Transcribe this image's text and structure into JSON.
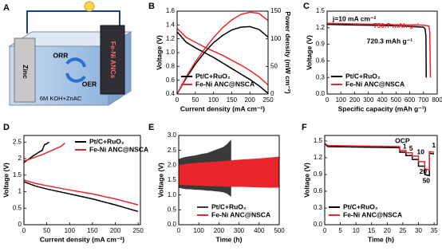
{
  "schematic": {
    "label": "A",
    "zinc": "Zinc",
    "cathode": "Fe-Ni ANCs",
    "orr": "ORR",
    "oer": "OER",
    "electrolyte": "6M KOH+ZnAC"
  },
  "chart_data": [
    {
      "type": "line",
      "label": "B",
      "xlabel": "Current density (mA cm⁻²)",
      "ylabel": "Voltage (V)",
      "y2label": "Power density (mW cm⁻²)",
      "xlim": [
        0,
        250
      ],
      "xticks": [
        0,
        50,
        100,
        150,
        200,
        250
      ],
      "ylim": [
        0.4,
        1.6
      ],
      "yticks": [
        0.4,
        0.6,
        0.8,
        {
          "value": 1.0,
          "label": "1.0"
        },
        1.2,
        1.4,
        1.6
      ],
      "y2lim": [
        0,
        150
      ],
      "y2ticks": [
        0,
        50,
        100,
        150
      ],
      "legend": "lower left",
      "series": [
        {
          "name": "Pt/C+RuO₂",
          "color": "#000000",
          "x": [
            0,
            25,
            50,
            75,
            100,
            125,
            150,
            175,
            200,
            225,
            250
          ],
          "values": [
            1.3,
            1.15,
            1.07,
            1.0,
            0.93,
            0.85,
            0.77,
            0.69,
            0.61,
            0.52,
            0.41
          ]
        },
        {
          "name": "Fe-Ni ANC@NSCA",
          "color": "#e8262b",
          "x": [
            0,
            25,
            50,
            75,
            100,
            125,
            150,
            175,
            200,
            225,
            250
          ],
          "values": [
            1.35,
            1.22,
            1.15,
            1.08,
            1.02,
            0.96,
            0.89,
            0.82,
            0.74,
            0.65,
            0.53
          ]
        },
        {
          "color": "#000000",
          "axis": "y2",
          "x": [
            0,
            25,
            50,
            75,
            100,
            125,
            150,
            175,
            200,
            225,
            250
          ],
          "values": [
            0,
            29,
            54,
            75,
            93,
            106,
            116,
            121,
            122,
            117,
            103
          ]
        },
        {
          "color": "#e8262b",
          "axis": "y2",
          "x": [
            0,
            25,
            50,
            75,
            100,
            125,
            150,
            175,
            200,
            225,
            250
          ],
          "values": [
            0,
            31,
            58,
            81,
            102,
            120,
            134,
            144,
            148,
            146,
            133
          ]
        }
      ]
    },
    {
      "type": "line",
      "label": "C",
      "xlabel": "Specific capacity (mAh g⁻¹)",
      "ylabel": "Voltage (V)",
      "xlim": [
        0,
        800
      ],
      "xticks": [
        0,
        100,
        200,
        300,
        400,
        500,
        600,
        700,
        800
      ],
      "ylim": [
        0,
        1.5
      ],
      "yticks": [
        {
          "value": 0,
          "label": "0.0"
        },
        0.3,
        0.6,
        0.9,
        1.2,
        1.5
      ],
      "legend": "lower left",
      "annotations": [
        {
          "text": "j=10 mA cm⁻²",
          "color": "#000000"
        },
        {
          "text": "750.7 mAh g⁻¹",
          "color": "#e8262b"
        },
        {
          "text": "720.3 mAh g⁻¹",
          "color": "#000000"
        }
      ],
      "series": [
        {
          "name": "Pt/C+RuO₂",
          "color": "#000000",
          "x": [
            0,
            100,
            200,
            300,
            400,
            500,
            600,
            700,
            712,
            718,
            720.3
          ],
          "values": [
            1.26,
            1.255,
            1.25,
            1.245,
            1.24,
            1.235,
            1.225,
            1.21,
            1.18,
            1.05,
            0.3
          ]
        },
        {
          "name": "Fe-Ni ANC@NSCA",
          "color": "#e8262b",
          "x": [
            0,
            100,
            200,
            300,
            400,
            500,
            600,
            700,
            740,
            746,
            750.7
          ],
          "values": [
            1.28,
            1.275,
            1.27,
            1.265,
            1.26,
            1.255,
            1.25,
            1.245,
            1.23,
            1.12,
            0.3
          ]
        }
      ]
    },
    {
      "type": "line",
      "label": "D",
      "xlabel": "Current density (mA cm⁻²)",
      "ylabel": "Voltage (V)",
      "xlim": [
        0,
        255
      ],
      "xticks": [
        0,
        50,
        100,
        150,
        200,
        250
      ],
      "ylim": [
        0,
        2.7
      ],
      "yticks": [
        0,
        0.5,
        1,
        1.5,
        2,
        2.5
      ],
      "legend": "upper right",
      "series": [
        {
          "name": "Pt/C+RuO₂",
          "color": "#000000",
          "x": [
            0,
            25,
            50,
            100,
            150,
            200,
            250
          ],
          "values": [
            1.3,
            1.17,
            1.08,
            0.93,
            0.78,
            0.6,
            0.4
          ]
        },
        {
          "name": "Fe-Ni ANC@NSCA",
          "color": "#e8262b",
          "x": [
            0,
            25,
            50,
            100,
            150,
            200,
            250
          ],
          "values": [
            1.35,
            1.25,
            1.18,
            1.05,
            0.93,
            0.78,
            0.6
          ]
        },
        {
          "color": "#000000",
          "x": [
            0,
            10,
            20,
            30,
            40,
            45,
            50,
            55
          ],
          "values": [
            1.88,
            1.98,
            2.08,
            2.17,
            2.25,
            2.42,
            2.45,
            2.5
          ]
        },
        {
          "color": "#e8262b",
          "x": [
            0,
            20,
            40,
            60,
            80,
            90
          ],
          "values": [
            1.92,
            2.02,
            2.12,
            2.24,
            2.36,
            2.47
          ]
        }
      ]
    },
    {
      "type": "band",
      "label": "E",
      "xlabel": "Time (h)",
      "ylabel": "Voltage (V)",
      "xlim": [
        0,
        500
      ],
      "xticks": [
        0,
        100,
        200,
        300,
        400,
        500
      ],
      "ylim": [
        0,
        3.0
      ],
      "yticks": [
        {
          "value": 0,
          "label": "0.0"
        },
        0.5,
        {
          "value": 1.0,
          "label": "1.0"
        },
        1.5,
        {
          "value": 2.0,
          "label": "2.0"
        },
        2.5,
        {
          "value": 3.0,
          "label": "3.0"
        }
      ],
      "legend": "lower center",
      "series": [
        {
          "name": "Pt/C+RuO₂",
          "color": "#3a3a3a",
          "x": [
            0,
            20,
            40,
            60,
            80,
            100,
            120,
            140,
            160,
            180,
            200,
            220,
            240,
            260
          ],
          "low": [
            1.25,
            1.22,
            1.2,
            1.2,
            1.18,
            1.18,
            1.17,
            1.15,
            1.15,
            1.13,
            1.12,
            1.1,
            1.05,
            0.95
          ],
          "high": [
            2.2,
            2.25,
            2.28,
            2.3,
            2.32,
            2.35,
            2.38,
            2.4,
            2.45,
            2.5,
            2.55,
            2.6,
            2.7,
            2.85
          ]
        },
        {
          "name": "Fe-Ni ANC@NSCA",
          "color": "#e8262b",
          "x": [
            0,
            50,
            100,
            150,
            200,
            250,
            300,
            350,
            400,
            450,
            500
          ],
          "low": [
            1.35,
            1.33,
            1.32,
            1.3,
            1.3,
            1.28,
            1.28,
            1.27,
            1.26,
            1.25,
            1.25
          ],
          "high": [
            2.0,
            2.05,
            2.08,
            2.1,
            2.12,
            2.15,
            2.18,
            2.2,
            2.22,
            2.25,
            2.28
          ]
        }
      ]
    },
    {
      "type": "line",
      "label": "F",
      "xlabel": "Time (h)",
      "ylabel": "Voltage (V)",
      "xlim": [
        0,
        36
      ],
      "xticks": [
        0,
        5,
        10,
        15,
        20,
        25,
        30,
        35
      ],
      "ylim": [
        0,
        1.6
      ],
      "yticks": [
        {
          "value": 0,
          "label": "0.0"
        },
        0.3,
        0.6,
        0.9,
        1.2,
        1.5
      ],
      "legend": "lower left",
      "annotations": [
        {
          "text": "OCP",
          "color": "#000000"
        },
        {
          "text": "1",
          "color": "#000000"
        },
        {
          "text": "5",
          "color": "#000000"
        },
        {
          "text": "10",
          "color": "#000000"
        },
        {
          "text": "20",
          "color": "#000000"
        },
        {
          "text": "50",
          "color": "#000000"
        },
        {
          "text": "1",
          "color": "#000000"
        }
      ],
      "series": [
        {
          "name": "Pt/C+RuO₂",
          "color": "#000000",
          "x": [
            0,
            1,
            24,
            24,
            26,
            26,
            28,
            28,
            30,
            30,
            32,
            32,
            33.5,
            33.5,
            35
          ],
          "values": [
            1.45,
            1.4,
            1.38,
            1.3,
            1.3,
            1.24,
            1.24,
            1.17,
            1.17,
            1.05,
            1.05,
            0.9,
            0.88,
            1.28,
            1.27
          ]
        },
        {
          "name": "Fe-Ni ANC@NSCA",
          "color": "#e8262b",
          "x": [
            0,
            1,
            24,
            24,
            26,
            26,
            28,
            28,
            30,
            30,
            32,
            32,
            33.5,
            33.5,
            35
          ],
          "values": [
            1.46,
            1.42,
            1.4,
            1.33,
            1.33,
            1.29,
            1.29,
            1.23,
            1.23,
            1.13,
            1.13,
            1.0,
            0.98,
            1.31,
            1.3
          ]
        }
      ]
    }
  ]
}
